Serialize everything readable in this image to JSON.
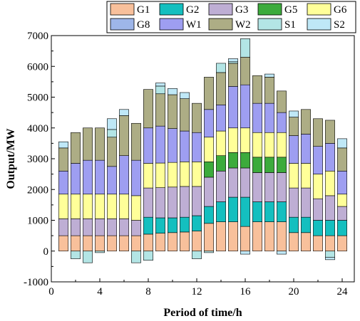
{
  "chart_data": {
    "type": "bar",
    "stacked": true,
    "xlabel": "Period of time/h",
    "ylabel": "Output/MW",
    "xlim": [
      0,
      25
    ],
    "ylim": [
      -1000,
      7000
    ],
    "xticks": [
      0,
      4,
      8,
      12,
      16,
      20,
      24
    ],
    "yticks": [
      -1000,
      0,
      1000,
      2000,
      3000,
      4000,
      5000,
      6000,
      7000
    ],
    "grid": false,
    "legend_position": "top",
    "x": [
      1,
      2,
      3,
      4,
      5,
      6,
      7,
      8,
      9,
      10,
      11,
      12,
      13,
      14,
      15,
      16,
      17,
      18,
      19,
      20,
      21,
      22,
      23,
      24
    ],
    "series": [
      {
        "name": "G1",
        "color": "#F8C09B",
        "values": [
          500,
          500,
          500,
          500,
          500,
          500,
          500,
          550,
          580,
          600,
          620,
          650,
          900,
          950,
          950,
          800,
          950,
          950,
          950,
          600,
          600,
          500,
          500,
          500
        ]
      },
      {
        "name": "G2",
        "color": "#14BFBF",
        "values": [
          0,
          0,
          0,
          0,
          0,
          0,
          0,
          550,
          500,
          480,
          480,
          500,
          550,
          650,
          800,
          950,
          650,
          650,
          650,
          500,
          500,
          500,
          500,
          500
        ]
      },
      {
        "name": "G3",
        "color": "#BEAED4",
        "values": [
          550,
          550,
          550,
          550,
          550,
          550,
          500,
          950,
          980,
          1000,
          1000,
          950,
          950,
          1000,
          950,
          950,
          950,
          950,
          950,
          950,
          950,
          700,
          800,
          450
        ]
      },
      {
        "name": "G5",
        "color": "#3CAB3C",
        "values": [
          0,
          0,
          0,
          0,
          0,
          0,
          0,
          0,
          0,
          0,
          0,
          0,
          500,
          500,
          500,
          500,
          500,
          500,
          500,
          0,
          0,
          0,
          0,
          0
        ]
      },
      {
        "name": "G6",
        "color": "#FFFF99",
        "values": [
          800,
          800,
          800,
          800,
          800,
          800,
          800,
          800,
          800,
          800,
          800,
          800,
          800,
          800,
          800,
          800,
          800,
          800,
          800,
          800,
          800,
          800,
          800,
          400
        ]
      },
      {
        "name": "G8",
        "color": "#9EB6E9",
        "values": [
          0,
          0,
          0,
          0,
          0,
          0,
          0,
          0,
          0,
          0,
          0,
          0,
          0,
          0,
          0,
          0,
          0,
          0,
          0,
          0,
          0,
          0,
          0,
          0
        ]
      },
      {
        "name": "W1",
        "color": "#9E9EF1",
        "values": [
          750,
          1000,
          1100,
          1100,
          900,
          1250,
          1150,
          1150,
          1200,
          1100,
          1000,
          950,
          900,
          850,
          1350,
          1400,
          950,
          950,
          650,
          900,
          950,
          900,
          900,
          750
        ]
      },
      {
        "name": "W2",
        "color": "#ADAD85",
        "values": [
          750,
          1000,
          1050,
          1050,
          950,
          1300,
          1200,
          1250,
          1050,
          1100,
          1050,
          950,
          1050,
          1050,
          750,
          900,
          900,
          850,
          700,
          600,
          800,
          900,
          750,
          750
        ]
      },
      {
        "name": "S1",
        "color": "#B3E5E5",
        "values": [
          0,
          0,
          0,
          0,
          250,
          0,
          0,
          0,
          250,
          0,
          0,
          0,
          0,
          300,
          50,
          600,
          0,
          0,
          0,
          0,
          0,
          0,
          0,
          0
        ]
      },
      {
        "name": "S2",
        "color": "#BFE8F7",
        "values": [
          200,
          0,
          0,
          0,
          350,
          200,
          0,
          0,
          100,
          200,
          200,
          0,
          0,
          0,
          100,
          0,
          0,
          100,
          0,
          200,
          0,
          0,
          0,
          300
        ]
      }
    ],
    "negative_series": [
      {
        "name": "G1",
        "color": "#F8C09B",
        "values": [
          0,
          0,
          0,
          0,
          0,
          0,
          0,
          0,
          0,
          0,
          0,
          0,
          0,
          0,
          0,
          0,
          0,
          0,
          0,
          0,
          0,
          0,
          0,
          0
        ]
      },
      {
        "name": "S1",
        "color": "#B3E5E5",
        "values": [
          0,
          -250,
          -380,
          -50,
          0,
          0,
          -380,
          -300,
          0,
          0,
          0,
          -250,
          -50,
          0,
          0,
          0,
          0,
          0,
          0,
          0,
          0,
          0,
          -200,
          0
        ]
      },
      {
        "name": "S2",
        "color": "#BFE8F7",
        "values": [
          0,
          0,
          0,
          0,
          0,
          0,
          0,
          0,
          0,
          0,
          0,
          0,
          0,
          0,
          0,
          -100,
          0,
          0,
          -100,
          0,
          0,
          0,
          -80,
          0
        ]
      }
    ]
  }
}
